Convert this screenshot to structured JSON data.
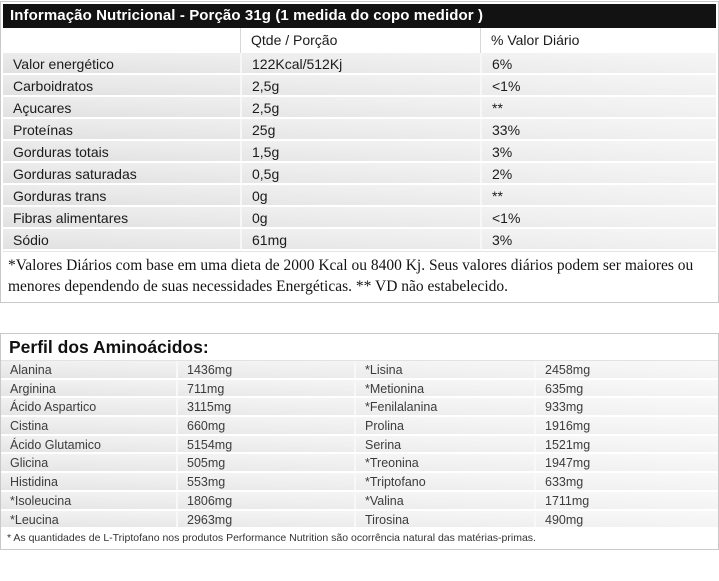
{
  "colors": {
    "title_bar_bg": "#121212",
    "title_bar_text": "#ffffff",
    "row_gray": "#e6e6e6",
    "border_gray": "#c9c9c9"
  },
  "nutrition_table": {
    "title": "Informação Nutricional - Porção 31g (1 medida do copo medidor )",
    "columns": [
      "",
      "Qtde / Porção",
      "% Valor Diário"
    ],
    "rows": [
      {
        "label": "Valor energético",
        "qty": "122Kcal/512Kj",
        "dv": "6%"
      },
      {
        "label": "Carboidratos",
        "qty": "2,5g",
        "dv": "<1%"
      },
      {
        "label": "Açucares",
        "qty": "2,5g",
        "dv": "**"
      },
      {
        "label": "Proteínas",
        "qty": "25g",
        "dv": "33%"
      },
      {
        "label": "Gorduras totais",
        "qty": "1,5g",
        "dv": "3%"
      },
      {
        "label": "Gorduras saturadas",
        "qty": "0,5g",
        "dv": "2%"
      },
      {
        "label": "Gorduras trans",
        "qty": "0g",
        "dv": "**"
      },
      {
        "label": "Fibras alimentares",
        "qty": "0g",
        "dv": "<1%"
      },
      {
        "label": "Sódio",
        "qty": "61mg",
        "dv": "3%"
      }
    ],
    "footnote": "*Valores Diários com base em uma dieta de 2000 Kcal ou 8400 Kj. Seus valores diários podem ser maiores ou menores dependendo de suas necessidades Energéticas. ** VD não estabelecido."
  },
  "amino_table": {
    "title": "Perfil dos Aminoácidos:",
    "rows": [
      {
        "name1": "Alanina",
        "val1": "1436mg",
        "name2": "*Lisina",
        "val2": "2458mg"
      },
      {
        "name1": "Arginina",
        "val1": "711mg",
        "name2": "*Metionina",
        "val2": "635mg"
      },
      {
        "name1": "Ácido Aspartico",
        "val1": "3115mg",
        "name2": "*Fenilalanina",
        "val2": "933mg"
      },
      {
        "name1": "Cistina",
        "val1": "660mg",
        "name2": "Prolina",
        "val2": "1916mg"
      },
      {
        "name1": "Ácido Glutamico",
        "val1": "5154mg",
        "name2": "Serina",
        "val2": "1521mg"
      },
      {
        "name1": "Glicina",
        "val1": "505mg",
        "name2": "*Treonina",
        "val2": "1947mg"
      },
      {
        "name1": "Histidina",
        "val1": "553mg",
        "name2": "*Triptofano",
        "val2": "633mg"
      },
      {
        "name1": "*Isoleucina",
        "val1": "1806mg",
        "name2": "*Valina",
        "val2": "1711mg"
      },
      {
        "name1": "*Leucina",
        "val1": "2963mg",
        "name2": "Tirosina",
        "val2": "490mg"
      }
    ],
    "footnote": "* As quantidades de L-Triptofano nos produtos Performance Nutrition são ocorrência natural das matérias-primas."
  }
}
